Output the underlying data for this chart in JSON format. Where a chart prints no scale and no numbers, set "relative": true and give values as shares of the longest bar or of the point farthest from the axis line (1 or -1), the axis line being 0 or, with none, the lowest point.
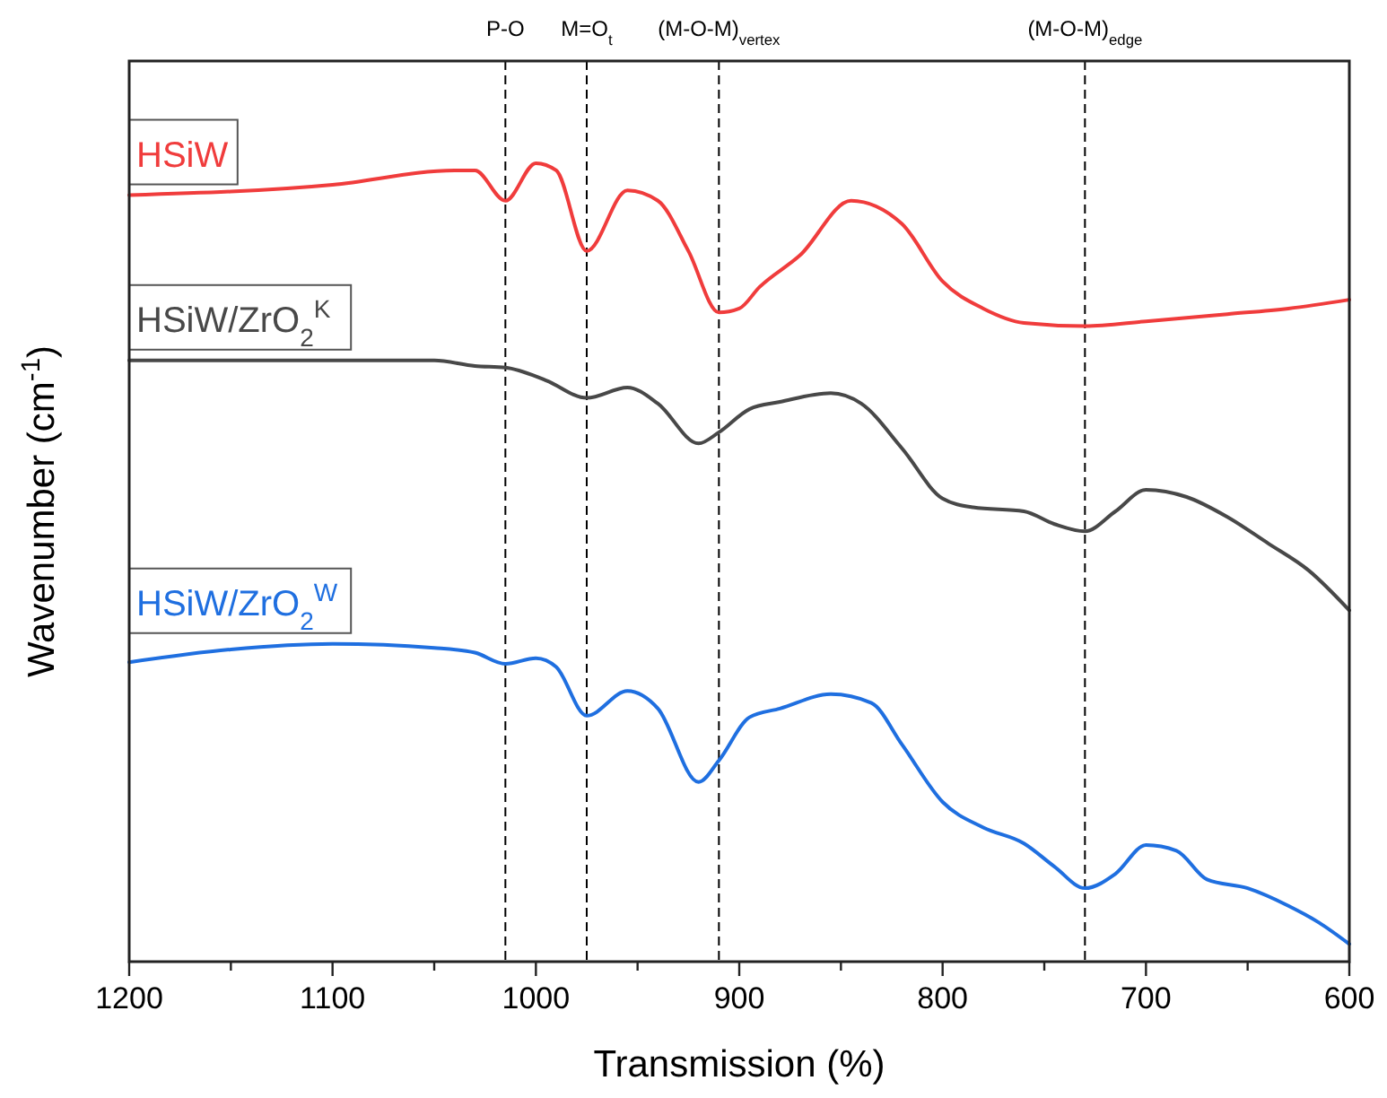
{
  "chart_data": {
    "type": "line",
    "relative": true,
    "xlabel": "Transmission (%)",
    "ylabel": "Wavenumber (cm$^{-1}$)",
    "xlim": [
      1200,
      600
    ],
    "xticks": [
      1200,
      {
        "value": 1150,
        "label": null
      },
      1100,
      {
        "value": 1050,
        "label": null
      },
      1000,
      {
        "value": 950,
        "label": null
      },
      900,
      {
        "value": 850,
        "label": null
      },
      800,
      {
        "value": 750,
        "label": null
      },
      700,
      {
        "value": 650,
        "label": null
      },
      600
    ],
    "grid": false,
    "line_style": "solid",
    "ref_lines": [
      {
        "axis": "x",
        "value": 1015,
        "label": "P-O",
        "line_style": "dashed"
      },
      {
        "axis": "x",
        "value": 975,
        "label": "M=O$_{t}$",
        "line_style": "dashed"
      },
      {
        "axis": "x",
        "value": 910,
        "label": "(M-O-M)$_{vertex}$",
        "line_style": "dashed"
      },
      {
        "axis": "x",
        "value": 730,
        "label": "(M-O-M)$_{edge}$",
        "line_style": "dashed"
      }
    ],
    "series": [
      {
        "name": "HSiW",
        "color": "#f03c3c",
        "x": [
          1200,
          1100,
          1040,
          1030,
          1015,
          1000,
          990,
          975,
          955,
          940,
          925,
          910,
          900,
          890,
          870,
          845,
          820,
          800,
          780,
          760,
          730,
          700,
          660,
          630,
          600
        ],
        "values": [
          0.96,
          0.973,
          0.991,
          0.991,
          0.953,
          1.0,
          0.991,
          0.89,
          0.966,
          0.953,
          0.89,
          0.813,
          0.818,
          0.845,
          0.885,
          0.953,
          0.924,
          0.852,
          0.818,
          0.8,
          0.796,
          0.802,
          0.811,
          0.818,
          0.829
        ]
      },
      {
        "name": "HSiW/ZrO$_{2}$$^{K}$",
        "color": "#484848",
        "x": [
          1200,
          1100,
          1050,
          1030,
          1015,
          995,
          975,
          955,
          940,
          920,
          910,
          895,
          880,
          855,
          840,
          820,
          800,
          785,
          760,
          745,
          730,
          715,
          700,
          680,
          660,
          640,
          620,
          600
        ],
        "values": [
          0.753,
          0.753,
          0.753,
          0.746,
          0.744,
          0.728,
          0.706,
          0.719,
          0.699,
          0.649,
          0.663,
          0.692,
          0.701,
          0.712,
          0.699,
          0.643,
          0.58,
          0.569,
          0.564,
          0.548,
          0.539,
          0.564,
          0.591,
          0.582,
          0.557,
          0.524,
          0.49,
          0.44
        ]
      },
      {
        "name": "HSiW/ZrO$_{2}$$^{W}$",
        "color": "#1f6fe0",
        "x": [
          1200,
          1150,
          1100,
          1050,
          1030,
          1015,
          1000,
          990,
          975,
          955,
          940,
          920,
          910,
          895,
          880,
          855,
          835,
          820,
          800,
          780,
          760,
          745,
          730,
          715,
          700,
          685,
          670,
          650,
          630,
          615,
          600
        ],
        "values": [
          0.375,
          0.391,
          0.398,
          0.393,
          0.387,
          0.373,
          0.38,
          0.369,
          0.308,
          0.339,
          0.317,
          0.225,
          0.252,
          0.306,
          0.317,
          0.335,
          0.324,
          0.272,
          0.2,
          0.168,
          0.148,
          0.119,
          0.092,
          0.11,
          0.146,
          0.139,
          0.103,
          0.092,
          0.07,
          0.049,
          0.022
        ]
      }
    ]
  }
}
